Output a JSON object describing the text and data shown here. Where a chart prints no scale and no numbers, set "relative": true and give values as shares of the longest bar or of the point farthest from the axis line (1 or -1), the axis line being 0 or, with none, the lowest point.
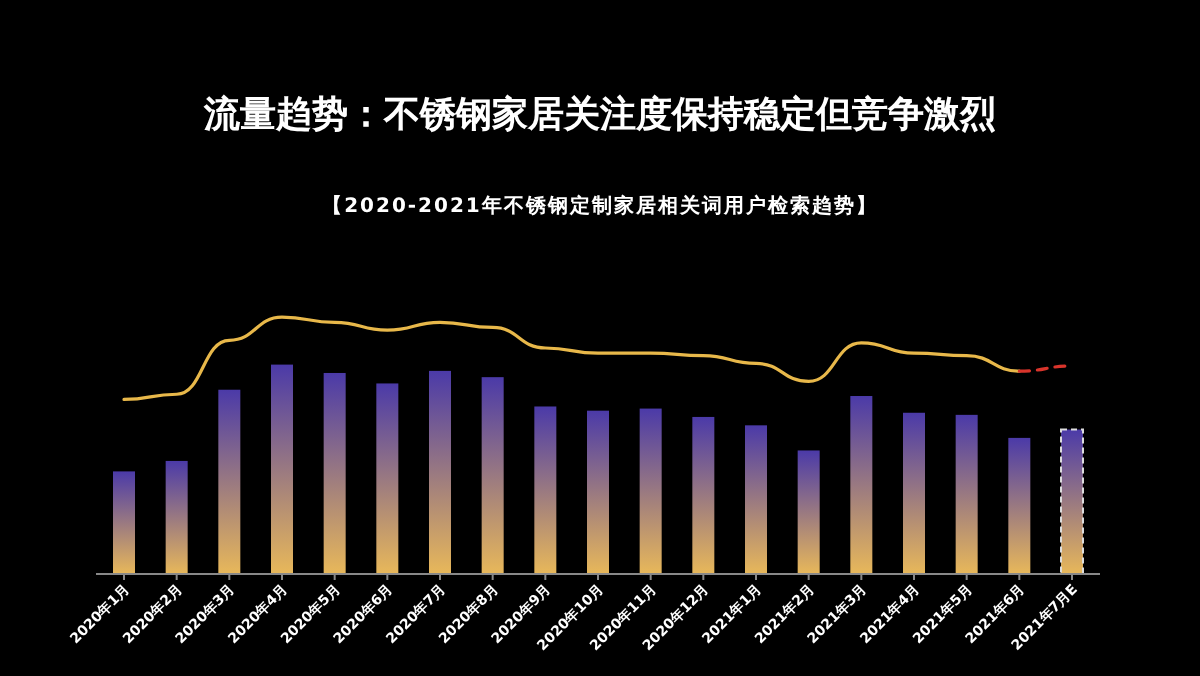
{
  "chart_data": {
    "type": "bar",
    "relative": true,
    "title": "流量趋势：不锈钢家居关注度保持稳定但竞争激烈",
    "subtitle": "【2020-2021年不锈钢定制家居相关词用户检索趋势】",
    "categories": [
      "2020年1月",
      "2020年2月",
      "2020年3月",
      "2020年4月",
      "2020年5月",
      "2020年6月",
      "2020年7月",
      "2020年8月",
      "2020年9月",
      "2020年10月",
      "2020年11月",
      "2020年12月",
      "2021年1月",
      "2021年2月",
      "2021年3月",
      "2021年4月",
      "2021年5月",
      "2021年6月",
      "2021年7月E"
    ],
    "series": [
      {
        "color": "#4b3aa8",
        "values": [
          0.49,
          0.54,
          0.88,
          1,
          0.96,
          0.91,
          0.97,
          0.94,
          0.8,
          0.78,
          0.79,
          0.75,
          0.71,
          0.59,
          0.85,
          0.77,
          0.76,
          0.65,
          null
        ]
      },
      {
        "color": "#dddddd",
        "line_style": "dashed",
        "values": [
          null,
          null,
          null,
          null,
          null,
          null,
          null,
          null,
          null,
          null,
          null,
          null,
          null,
          null,
          null,
          null,
          null,
          null,
          0.69
        ]
      },
      {
        "type": "line",
        "axis": "y2",
        "color": "#e8b84a",
        "line_style": "solid",
        "values": [
          0.68,
          0.7,
          0.91,
          1,
          0.98,
          0.95,
          0.98,
          0.96,
          0.88,
          0.86,
          0.86,
          0.85,
          0.82,
          0.75,
          0.9,
          0.86,
          0.85,
          0.79,
          null
        ]
      },
      {
        "type": "line",
        "axis": "y2",
        "color": "#d9342b",
        "line_style": "dashed",
        "values": [
          null,
          null,
          null,
          null,
          null,
          null,
          null,
          null,
          null,
          null,
          null,
          null,
          null,
          null,
          null,
          null,
          null,
          0.79,
          0.81
        ]
      }
    ]
  }
}
